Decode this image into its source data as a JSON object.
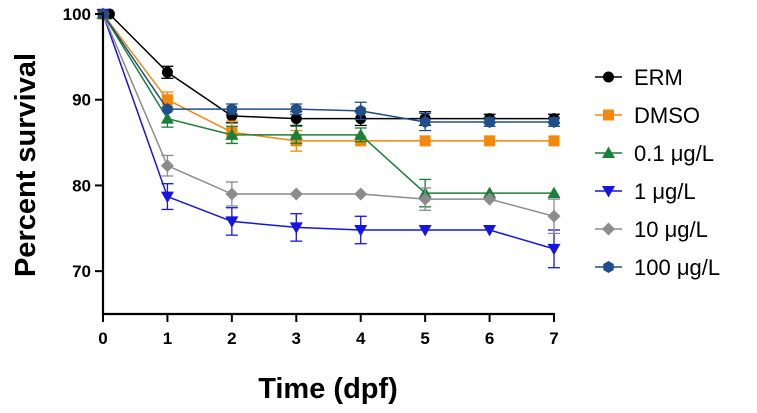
{
  "chart_data": {
    "type": "line",
    "xlabel": "Time (dpf)",
    "ylabel": "Percent survival",
    "xlim": [
      0,
      7
    ],
    "ylim": [
      65,
      100
    ],
    "x_ticks": [
      "0",
      "1",
      "2",
      "3",
      "4",
      "5",
      "6",
      "7"
    ],
    "y_ticks": [
      "70",
      "80",
      "90",
      "100"
    ],
    "legend_position": "right",
    "series": [
      {
        "name": "ERM",
        "color": "#000000",
        "marker": "circle",
        "x": [
          0,
          0.1,
          1,
          2,
          3,
          4,
          5,
          6,
          7
        ],
        "y": [
          100,
          100,
          93.2,
          88.1,
          87.8,
          87.8,
          87.8,
          87.8,
          87.8
        ],
        "err": [
          0,
          0,
          0.7,
          0.8,
          0.8,
          0.8,
          0.8,
          0.5,
          0.5
        ]
      },
      {
        "name": "DMSO",
        "color": "#F5880A",
        "marker": "square",
        "x": [
          0,
          1,
          2,
          3,
          4,
          5,
          6,
          7
        ],
        "y": [
          100,
          90.0,
          86.2,
          85.2,
          85.2,
          85.2,
          85.2,
          85.2
        ],
        "err": [
          0,
          0.9,
          1.3,
          1.2,
          0,
          0,
          0,
          0
        ]
      },
      {
        "name": "0.1 μg/L",
        "color": "#1A7F37",
        "marker": "triangle-up",
        "x": [
          0,
          1,
          2,
          3,
          4,
          5,
          6,
          7
        ],
        "y": [
          100,
          87.8,
          85.9,
          85.9,
          85.9,
          79.1,
          79.1,
          79.1
        ],
        "err": [
          0,
          1.0,
          1.0,
          1.0,
          0.8,
          1.6,
          0,
          0
        ]
      },
      {
        "name": "1 μg/L",
        "color": "#1515E0",
        "marker": "triangle-down",
        "x": [
          0,
          1,
          2,
          3,
          4,
          5,
          6,
          7
        ],
        "y": [
          100,
          78.7,
          75.8,
          75.1,
          74.8,
          74.8,
          74.8,
          72.6
        ],
        "err": [
          0,
          1.5,
          1.6,
          1.6,
          1.6,
          0,
          0,
          2.2
        ]
      },
      {
        "name": "10 μg/L",
        "color": "#8C8C8C",
        "marker": "diamond",
        "x": [
          0,
          1,
          2,
          3,
          4,
          5,
          6,
          7
        ],
        "y": [
          100,
          82.3,
          79.0,
          79.0,
          79.0,
          78.4,
          78.4,
          76.4
        ],
        "err": [
          0,
          1.2,
          1.4,
          0,
          0,
          1.3,
          0,
          2.0
        ]
      },
      {
        "name": "100 μg/L",
        "color": "#1F4E8C",
        "marker": "hexagon",
        "x": [
          0,
          1,
          2,
          3,
          4,
          5,
          6,
          7
        ],
        "y": [
          100,
          88.9,
          88.9,
          88.9,
          88.7,
          87.4,
          87.4,
          87.4
        ],
        "err": [
          0,
          0,
          0.6,
          0.6,
          1.0,
          1.0,
          0.5,
          0.5
        ]
      }
    ]
  }
}
